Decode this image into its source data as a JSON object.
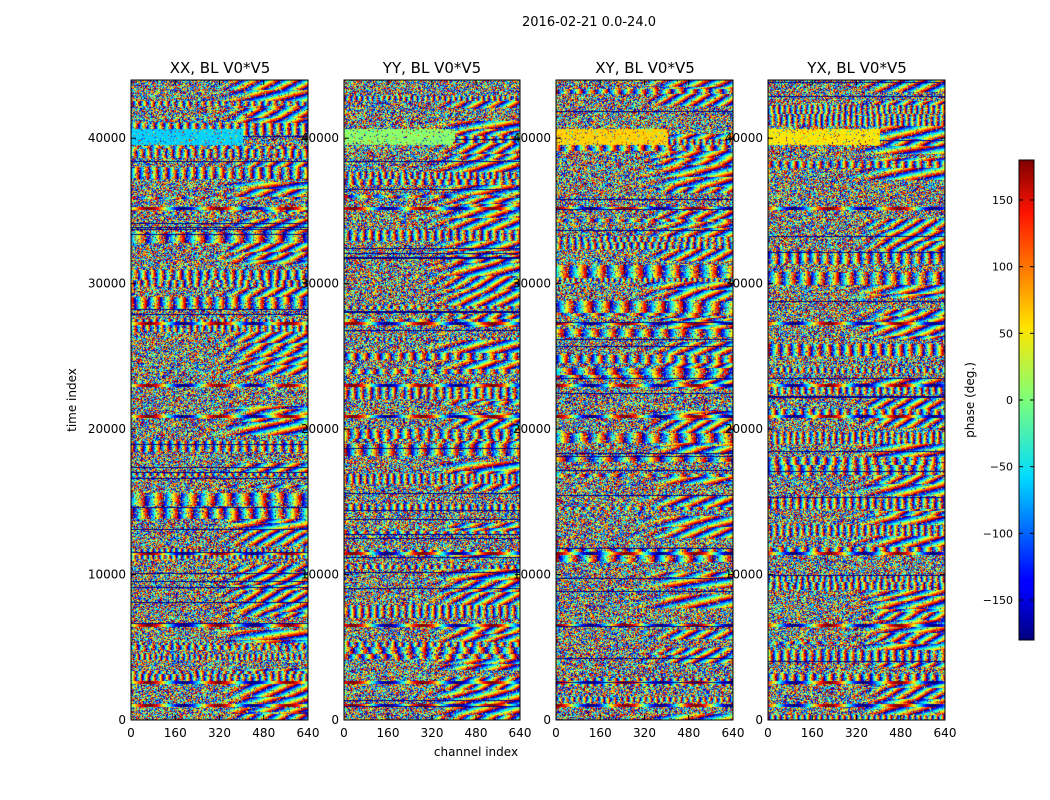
{
  "figure": {
    "suptitle": "2016-02-21 0.0-24.0"
  },
  "chart_data": [
    {
      "type": "heatmap",
      "title": "XX, BL V0*V5",
      "xlabel": "",
      "ylabel": "time index",
      "xlim": [
        0,
        640
      ],
      "ylim": [
        0,
        44000
      ],
      "xticks": [
        0,
        160,
        320,
        480,
        640
      ],
      "yticks": [
        0,
        10000,
        20000,
        30000,
        40000
      ],
      "value_range": [
        -180,
        180
      ],
      "colormap": "jet",
      "bright_band_color": "#00d2ff"
    },
    {
      "type": "heatmap",
      "title": "YY, BL V0*V5",
      "xlabel": "channel index",
      "ylabel": "",
      "xlim": [
        0,
        640
      ],
      "ylim": [
        0,
        44000
      ],
      "xticks": [
        0,
        160,
        320,
        480,
        640
      ],
      "yticks": [
        0,
        10000,
        20000,
        30000,
        40000
      ],
      "value_range": [
        -180,
        180
      ],
      "colormap": "jet",
      "bright_band_color": "#8cff6a"
    },
    {
      "type": "heatmap",
      "title": "XY, BL V0*V5",
      "xlabel": "",
      "ylabel": "",
      "xlim": [
        0,
        640
      ],
      "ylim": [
        0,
        44000
      ],
      "xticks": [
        0,
        160,
        320,
        480,
        640
      ],
      "yticks": [
        0,
        10000,
        20000,
        30000,
        40000
      ],
      "value_range": [
        -180,
        180
      ],
      "colormap": "jet",
      "bright_band_color": "#ffd200"
    },
    {
      "type": "heatmap",
      "title": "YX, BL V0*V5",
      "xlabel": "",
      "ylabel": "",
      "xlim": [
        0,
        640
      ],
      "ylim": [
        0,
        44000
      ],
      "xticks": [
        0,
        160,
        320,
        480,
        640
      ],
      "yticks": [
        0,
        10000,
        20000,
        30000,
        40000
      ],
      "value_range": [
        -180,
        180
      ],
      "colormap": "jet",
      "bright_band_color": "#ffe600"
    }
  ],
  "colorbar": {
    "label": "phase (deg.)",
    "range": [
      -180,
      180
    ],
    "ticks": [
      -150,
      -100,
      -50,
      0,
      50,
      100,
      150
    ],
    "tick_labels": [
      "−150",
      "−100",
      "−50",
      "0",
      "50",
      "100",
      "150"
    ]
  }
}
